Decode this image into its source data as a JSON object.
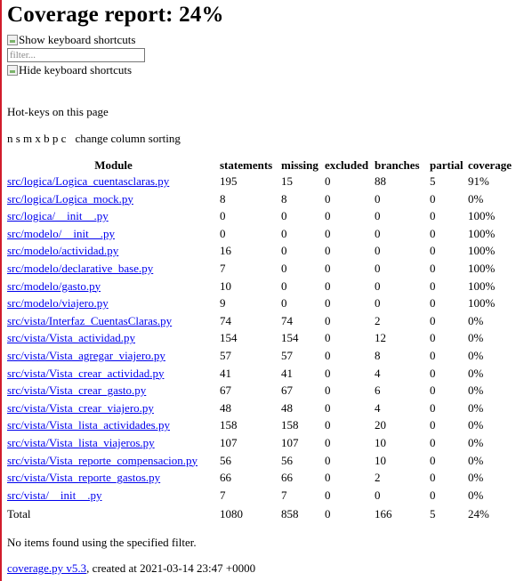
{
  "header": {
    "title": "Coverage report: 24%"
  },
  "shortcuts": {
    "show_label": "Show keyboard shortcuts",
    "hide_label": "Hide keyboard shortcuts"
  },
  "filter": {
    "placeholder": "filter..."
  },
  "hotkeys": {
    "title": "Hot-keys on this page",
    "keys": "n s m x b p c",
    "description": "change column sorting"
  },
  "table": {
    "headers": {
      "module": "Module",
      "statements": "statements",
      "missing": "missing",
      "excluded": "excluded",
      "branches": "branches",
      "partial": "partial",
      "coverage": "coverage"
    },
    "rows": [
      {
        "name": "src/logica/Logica_cuentasclaras.py",
        "statements": "195",
        "missing": "15",
        "excluded": "0",
        "branches": "88",
        "partial": "5",
        "coverage": "91%"
      },
      {
        "name": "src/logica/Logica_mock.py",
        "statements": "8",
        "missing": "8",
        "excluded": "0",
        "branches": "0",
        "partial": "0",
        "coverage": "0%"
      },
      {
        "name": "src/logica/__init__.py",
        "statements": "0",
        "missing": "0",
        "excluded": "0",
        "branches": "0",
        "partial": "0",
        "coverage": "100%"
      },
      {
        "name": "src/modelo/__init__.py",
        "statements": "0",
        "missing": "0",
        "excluded": "0",
        "branches": "0",
        "partial": "0",
        "coverage": "100%"
      },
      {
        "name": "src/modelo/actividad.py",
        "statements": "16",
        "missing": "0",
        "excluded": "0",
        "branches": "0",
        "partial": "0",
        "coverage": "100%"
      },
      {
        "name": "src/modelo/declarative_base.py",
        "statements": "7",
        "missing": "0",
        "excluded": "0",
        "branches": "0",
        "partial": "0",
        "coverage": "100%"
      },
      {
        "name": "src/modelo/gasto.py",
        "statements": "10",
        "missing": "0",
        "excluded": "0",
        "branches": "0",
        "partial": "0",
        "coverage": "100%"
      },
      {
        "name": "src/modelo/viajero.py",
        "statements": "9",
        "missing": "0",
        "excluded": "0",
        "branches": "0",
        "partial": "0",
        "coverage": "100%"
      },
      {
        "name": "src/vista/Interfaz_CuentasClaras.py",
        "statements": "74",
        "missing": "74",
        "excluded": "0",
        "branches": "2",
        "partial": "0",
        "coverage": "0%"
      },
      {
        "name": "src/vista/Vista_actividad.py",
        "statements": "154",
        "missing": "154",
        "excluded": "0",
        "branches": "12",
        "partial": "0",
        "coverage": "0%"
      },
      {
        "name": "src/vista/Vista_agregar_viajero.py",
        "statements": "57",
        "missing": "57",
        "excluded": "0",
        "branches": "8",
        "partial": "0",
        "coverage": "0%"
      },
      {
        "name": "src/vista/Vista_crear_actividad.py",
        "statements": "41",
        "missing": "41",
        "excluded": "0",
        "branches": "4",
        "partial": "0",
        "coverage": "0%"
      },
      {
        "name": "src/vista/Vista_crear_gasto.py",
        "statements": "67",
        "missing": "67",
        "excluded": "0",
        "branches": "6",
        "partial": "0",
        "coverage": "0%"
      },
      {
        "name": "src/vista/Vista_crear_viajero.py",
        "statements": "48",
        "missing": "48",
        "excluded": "0",
        "branches": "4",
        "partial": "0",
        "coverage": "0%"
      },
      {
        "name": "src/vista/Vista_lista_actividades.py",
        "statements": "158",
        "missing": "158",
        "excluded": "0",
        "branches": "20",
        "partial": "0",
        "coverage": "0%"
      },
      {
        "name": "src/vista/Vista_lista_viajeros.py",
        "statements": "107",
        "missing": "107",
        "excluded": "0",
        "branches": "10",
        "partial": "0",
        "coverage": "0%"
      },
      {
        "name": "src/vista/Vista_reporte_compensacion.py",
        "statements": "56",
        "missing": "56",
        "excluded": "0",
        "branches": "10",
        "partial": "0",
        "coverage": "0%"
      },
      {
        "name": "src/vista/Vista_reporte_gastos.py",
        "statements": "66",
        "missing": "66",
        "excluded": "0",
        "branches": "2",
        "partial": "0",
        "coverage": "0%"
      },
      {
        "name": "src/vista/__init__.py",
        "statements": "7",
        "missing": "7",
        "excluded": "0",
        "branches": "0",
        "partial": "0",
        "coverage": "0%"
      }
    ],
    "total": {
      "name": "Total",
      "statements": "1080",
      "missing": "858",
      "excluded": "0",
      "branches": "166",
      "partial": "5",
      "coverage": "24%"
    }
  },
  "no_items_message": "No items found using the specified filter.",
  "footer": {
    "link_text": "coverage.py v5.3",
    "created_text": ", created at 2021-03-14 23:47 +0000"
  },
  "colors": {
    "link": "#0000ee",
    "left_border": "#d11c2b"
  }
}
